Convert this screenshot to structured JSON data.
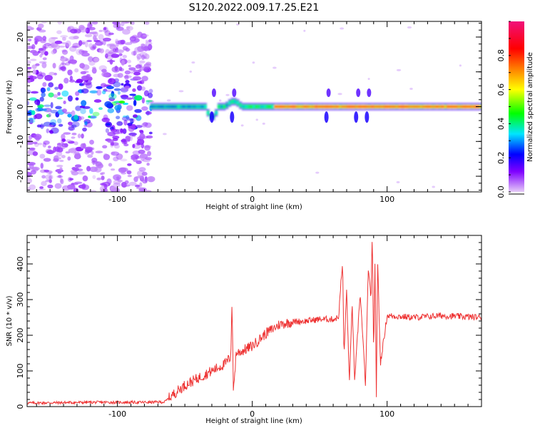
{
  "title": "S120.2022.009.17.25.E21",
  "chart_data": [
    {
      "type": "heatmap",
      "title": "",
      "xlabel": "Height of straight line (km)",
      "ylabel": "Frequency (Hz)",
      "xlim": [
        -167,
        170
      ],
      "ylim": [
        -24.5,
        24.5
      ],
      "xticks": [
        -100,
        0,
        100
      ],
      "yticks": [
        -20,
        -10,
        0,
        10,
        20
      ],
      "colorbar": {
        "label": "Normalized spectral amplitude",
        "range": [
          0,
          1
        ],
        "ticks": [
          "0.0",
          "0.2",
          "0.4",
          "0.6",
          "0.8"
        ],
        "colors": [
          "#e6ccf7",
          "#7f00ff",
          "#0000ff",
          "#00e5ff",
          "#00ff00",
          "#ffff00",
          "#ff8000",
          "#ff0000",
          "#f0107a"
        ]
      },
      "features": {
        "noise_region_x": [
          -167,
          -75
        ],
        "noise_band_amplitude": 0.45,
        "signal_band_center_hz": 0,
        "signal_band_x": [
          -75,
          170
        ],
        "signal_peak_amplitude": 0.85,
        "disturbances_x": [
          -30,
          -15,
          55,
          77,
          85
        ]
      }
    },
    {
      "type": "line",
      "title": "",
      "xlabel": "Height of straight line (km)",
      "ylabel": "SNR (10 * v/v)",
      "xlim": [
        -167,
        170
      ],
      "ylim": [
        0,
        480
      ],
      "xticks": [
        -100,
        0,
        100
      ],
      "yticks": [
        0,
        100,
        200,
        300,
        400
      ],
      "series": [
        {
          "color": "#ee3333",
          "x": [
            -167,
            -120,
            -80,
            -65,
            -60,
            -50,
            -40,
            -30,
            -20,
            -16,
            -15,
            -14,
            -12,
            -8,
            0,
            10,
            20,
            30,
            40,
            50,
            60,
            64,
            66,
            67,
            68,
            70,
            72,
            74,
            76,
            80,
            84,
            86,
            88,
            89,
            90,
            91,
            92,
            93,
            95,
            100,
            120,
            140,
            170
          ],
          "y": [
            10,
            12,
            12,
            13,
            30,
            60,
            80,
            100,
            120,
            140,
            300,
            40,
            150,
            155,
            170,
            205,
            230,
            238,
            240,
            245,
            245,
            250,
            360,
            400,
            140,
            330,
            60,
            290,
            70,
            320,
            60,
            390,
            300,
            480,
            140,
            420,
            30,
            410,
            120,
            255,
            250,
            255,
            250
          ]
        }
      ]
    }
  ]
}
